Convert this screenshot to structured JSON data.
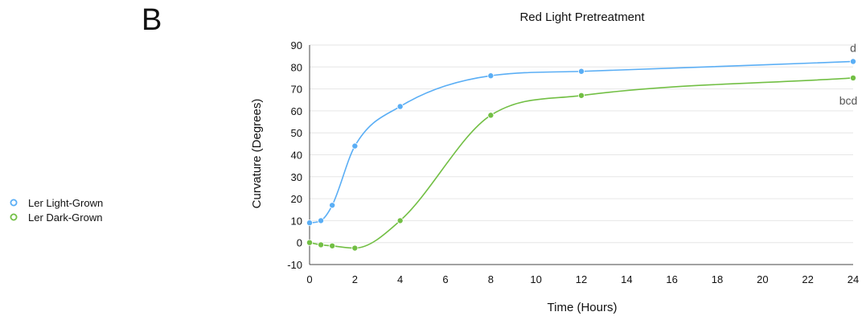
{
  "panel_label": "B",
  "chart_data": {
    "type": "line",
    "title": "Red Light Pretreatment",
    "xlabel": "Time (Hours)",
    "ylabel": "Curvature (Degrees)",
    "xlim": [
      0,
      24
    ],
    "ylim": [
      -10,
      90
    ],
    "xticks": [
      0,
      2,
      4,
      6,
      8,
      10,
      12,
      14,
      16,
      18,
      20,
      22,
      24
    ],
    "yticks": [
      -10,
      0,
      10,
      20,
      30,
      40,
      50,
      60,
      70,
      80,
      90
    ],
    "grid": "horizontal",
    "legend_position": "left",
    "series": [
      {
        "name": "Ler Light-Grown",
        "color": "#5aaef5",
        "x": [
          0,
          0.5,
          1,
          2,
          4,
          8,
          12,
          24
        ],
        "y": [
          9,
          10,
          17,
          44,
          62,
          76,
          78,
          82.5
        ],
        "annotation": "d"
      },
      {
        "name": "Ler Dark-Grown",
        "color": "#72bf44",
        "x": [
          0,
          0.5,
          1,
          2,
          4,
          8,
          12,
          24
        ],
        "y": [
          0,
          -1,
          -1.5,
          -2.5,
          10,
          58,
          67,
          75
        ],
        "annotation": "bcd"
      }
    ]
  }
}
